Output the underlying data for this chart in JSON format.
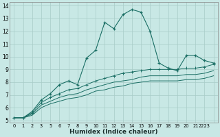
{
  "xlabel": "Humidex (Indice chaleur)",
  "bg_color": "#c8e8e5",
  "grid_color": "#a8ccc8",
  "line_color": "#1a6e64",
  "xlim": [
    -0.5,
    22.5
  ],
  "ylim": [
    4.8,
    14.3
  ],
  "xtick_positions": [
    0,
    1,
    2,
    3,
    4,
    5,
    6,
    7,
    8,
    9,
    10,
    11,
    12,
    13,
    14,
    15,
    16,
    17,
    18,
    19,
    20,
    21,
    22
  ],
  "xtick_labels": [
    "0",
    "1",
    "2",
    "3",
    "5",
    "6",
    "7",
    "8",
    "9",
    "10",
    "11",
    "12",
    "13",
    "14",
    "15",
    "16",
    "17",
    "18",
    "19",
    "20",
    "21",
    "2223",
    ""
  ],
  "yticks": [
    5,
    6,
    7,
    8,
    9,
    10,
    11,
    12,
    13,
    14
  ],
  "line1_x": [
    0,
    1,
    2,
    3,
    4,
    5,
    6,
    7,
    8,
    9,
    10,
    11,
    12,
    13,
    14,
    15,
    16,
    17,
    18,
    19,
    20,
    21,
    22
  ],
  "line1_y": [
    5.2,
    5.2,
    5.7,
    6.6,
    7.1,
    7.8,
    8.1,
    7.8,
    9.9,
    10.5,
    12.7,
    12.2,
    13.3,
    13.7,
    13.5,
    12.0,
    9.5,
    9.1,
    8.9,
    10.1,
    10.1,
    9.7,
    9.5
  ],
  "line2_y": [
    5.2,
    5.2,
    5.6,
    6.4,
    6.8,
    7.1,
    7.4,
    7.5,
    7.8,
    8.1,
    8.3,
    8.5,
    8.7,
    8.8,
    8.9,
    9.0,
    9.0,
    9.0,
    9.0,
    9.1,
    9.1,
    9.2,
    9.4
  ],
  "line3_y": [
    5.2,
    5.2,
    5.5,
    6.2,
    6.5,
    6.8,
    7.0,
    7.1,
    7.4,
    7.6,
    7.8,
    8.0,
    8.1,
    8.2,
    8.4,
    8.5,
    8.5,
    8.5,
    8.5,
    8.6,
    8.6,
    8.7,
    8.9
  ],
  "line4_y": [
    5.2,
    5.2,
    5.4,
    6.0,
    6.3,
    6.5,
    6.7,
    6.8,
    7.0,
    7.3,
    7.4,
    7.6,
    7.7,
    7.9,
    8.0,
    8.1,
    8.1,
    8.1,
    8.1,
    8.2,
    8.2,
    8.3,
    8.5
  ]
}
